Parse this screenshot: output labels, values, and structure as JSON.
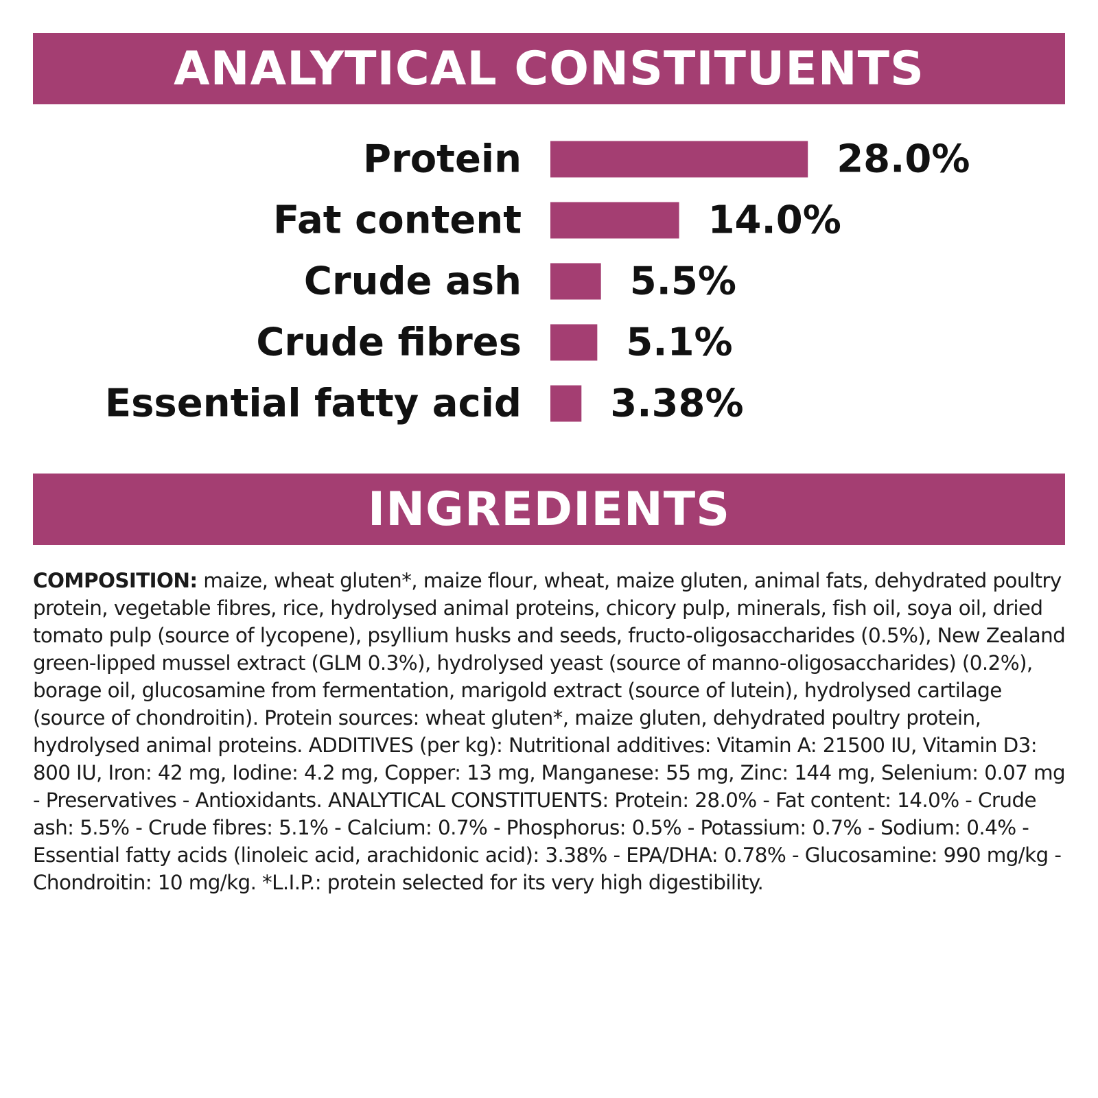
{
  "colors": {
    "accent": "#a43e72",
    "text": "#111111",
    "background": "#ffffff"
  },
  "sections": {
    "analytical_title": "ANALYTICAL CONSTITUENTS",
    "ingredients_title": "INGREDIENTS"
  },
  "chart_data": {
    "type": "bar",
    "orientation": "horizontal",
    "categories": [
      "Protein",
      "Fat content",
      "Crude ash",
      "Crude fibres",
      "Essential fatty acid"
    ],
    "values": [
      28.0,
      14.0,
      5.5,
      5.1,
      3.38
    ],
    "value_labels": [
      "28.0%",
      "14.0%",
      "5.5%",
      "5.1%",
      "3.38%"
    ],
    "unit": "%",
    "title": "",
    "xlabel": "",
    "ylabel": "",
    "grid": false,
    "color": "#a43e72"
  },
  "ingredients": {
    "composition_label": "COMPOSITION:",
    "composition_text": " maize, wheat gluten*, maize flour, wheat, maize gluten, animal fats, dehydrated poultry protein, vegetable fibres, rice, hydrolysed animal proteins, chicory pulp, minerals, fish oil, soya oil, dried tomato pulp (source of lycopene), psyllium husks and seeds, fructo-oligosaccharides (0.5%), New Zealand green-lipped mussel extract (GLM 0.3%), hydrolysed yeast (source of manno-oligosaccharides) (0.2%), borage oil, glucosamine from fermentation, marigold extract (source of lutein), hydrolysed cartilage (source of chondroitin). Protein sources: wheat gluten*, maize gluten, dehydrated poultry protein, hydrolysed animal proteins. ADDITIVES (per kg): Nutritional additives: Vitamin A: 21500 IU, Vitamin D3: 800 IU, Iron: 42 mg, Iodine: 4.2 mg, Copper: 13 mg, Manganese: 55 mg, Zinc: 144 mg, Selenium: 0.07 mg - Preservatives - Antioxidants. ANALYTICAL CONSTITUENTS: Protein: 28.0% - Fat content: 14.0% - Crude ash: 5.5% - Crude fibres: 5.1% - Calcium: 0.7% - Phosphorus: 0.5% - Potassium: 0.7% - Sodium: 0.4% - Essential fatty acids (linoleic acid, arachidonic acid): 3.38% - EPA/DHA: 0.78% - Glucosamine: 990 mg/kg - Chondroitin: 10 mg/kg. *L.I.P.: protein selected for its very high digestibility."
  }
}
